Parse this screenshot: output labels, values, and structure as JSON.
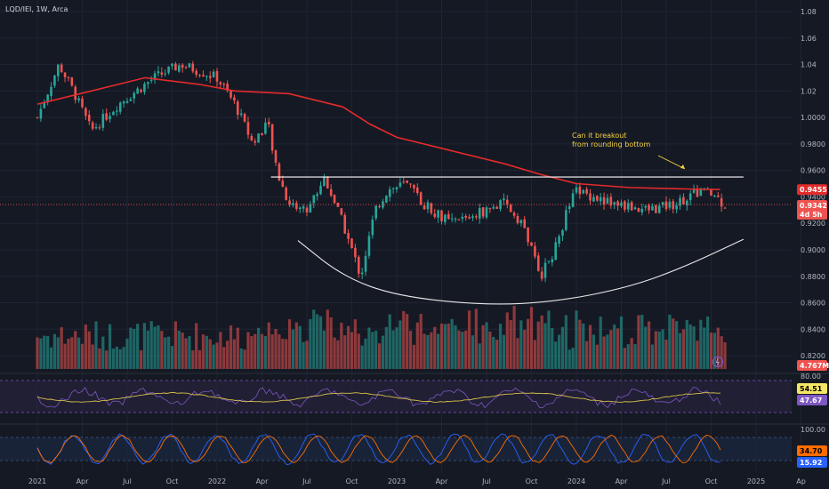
{
  "header": {
    "title": "LQD/IEI, 1W, Arca"
  },
  "annotation": {
    "line1": "Can it breakout",
    "line2": "from rounding bottom"
  },
  "colors": {
    "bg": "#151924",
    "up": "#26a69a",
    "down": "#ef5350",
    "ma": "#e32b2b",
    "annotation": "#f5d142",
    "rsi": "#7e57c2",
    "rsi_ma": "#d8c14a",
    "stoch_k": "#2962ff",
    "stoch_d": "#ff6d00"
  },
  "chart_data": [
    {
      "type": "candlestick",
      "title": "LQD/IEI",
      "timeframe": "1W",
      "exchange": "Arca",
      "y_ticks": [
        "1.08",
        "1.06",
        "1.04",
        "1.02",
        "1.0000",
        "0.9800",
        "0.9600",
        "0.9400",
        "0.9200",
        "0.9000",
        "0.8800",
        "0.8600",
        "0.8400",
        "0.8200"
      ],
      "ylim": [
        0.812,
        1.082
      ],
      "x_ticks": [
        "2021",
        "Apr",
        "Jul",
        "Oct",
        "2022",
        "Apr",
        "Jul",
        "Oct",
        "2023",
        "Apr",
        "Jul",
        "Oct",
        "2024",
        "Apr",
        "Jul",
        "Oct",
        "2025",
        "Ap"
      ],
      "price_path": [
        [
          2021.0,
          1.0
        ],
        [
          2021.12,
          1.04
        ],
        [
          2021.2,
          1.02
        ],
        [
          2021.3,
          0.99
        ],
        [
          2021.45,
          1.01
        ],
        [
          2021.55,
          1.02
        ],
        [
          2021.65,
          1.03
        ],
        [
          2021.8,
          1.04
        ],
        [
          2021.9,
          1.035
        ],
        [
          2022.0,
          1.03
        ],
        [
          2022.1,
          1.01
        ],
        [
          2022.2,
          0.98
        ],
        [
          2022.28,
          0.997
        ],
        [
          2022.33,
          0.96
        ],
        [
          2022.4,
          0.935
        ],
        [
          2022.5,
          0.93
        ],
        [
          2022.6,
          0.955
        ],
        [
          2022.7,
          0.92
        ],
        [
          2022.8,
          0.88
        ],
        [
          2022.88,
          0.93
        ],
        [
          2022.95,
          0.945
        ],
        [
          2023.05,
          0.95
        ],
        [
          2023.15,
          0.935
        ],
        [
          2023.3,
          0.92
        ],
        [
          2023.5,
          0.93
        ],
        [
          2023.6,
          0.935
        ],
        [
          2023.7,
          0.92
        ],
        [
          2023.8,
          0.88
        ],
        [
          2023.88,
          0.9
        ],
        [
          2023.95,
          0.93
        ],
        [
          2024.0,
          0.945
        ],
        [
          2024.2,
          0.935
        ],
        [
          2024.4,
          0.93
        ],
        [
          2024.55,
          0.935
        ],
        [
          2024.7,
          0.945
        ],
        [
          2024.78,
          0.94
        ],
        [
          2024.82,
          0.9342
        ]
      ],
      "moving_average_path": [
        [
          2021.0,
          1.01
        ],
        [
          2021.3,
          1.02
        ],
        [
          2021.6,
          1.03
        ],
        [
          2021.9,
          1.025
        ],
        [
          2022.1,
          1.02
        ],
        [
          2022.4,
          1.018
        ],
        [
          2022.7,
          1.008
        ],
        [
          2022.85,
          0.995
        ],
        [
          2023.0,
          0.985
        ],
        [
          2023.3,
          0.975
        ],
        [
          2023.6,
          0.965
        ],
        [
          2023.8,
          0.957
        ],
        [
          2024.0,
          0.95
        ],
        [
          2024.3,
          0.947
        ],
        [
          2024.6,
          0.946
        ],
        [
          2024.8,
          0.9455
        ]
      ],
      "resistance_level": 0.955,
      "rounding_bottom_path": [
        [
          2022.45,
          0.907
        ],
        [
          2022.7,
          0.88
        ],
        [
          2023.0,
          0.865
        ],
        [
          2023.5,
          0.858
        ],
        [
          2023.9,
          0.861
        ],
        [
          2024.3,
          0.872
        ],
        [
          2024.6,
          0.887
        ],
        [
          2024.93,
          0.908
        ]
      ],
      "price_tags": [
        {
          "label": "0.9455",
          "color": "#e32b2b"
        },
        {
          "label": "0.9342",
          "color": "#ef5350"
        },
        {
          "label": "4d 5h",
          "color": "#ef5350"
        }
      ],
      "volume_tag": "4.767M"
    },
    {
      "type": "line",
      "title": "RSI",
      "y_ticks": [
        "80.00"
      ],
      "series": [
        {
          "value_tag": "54.51"
        },
        {
          "value_tag": "47.67"
        }
      ]
    },
    {
      "type": "line",
      "title": "Stochastic",
      "y_ticks": [
        "100.00"
      ],
      "series": [
        {
          "value_tag": "34.70"
        },
        {
          "value_tag": "15.92"
        }
      ]
    }
  ]
}
